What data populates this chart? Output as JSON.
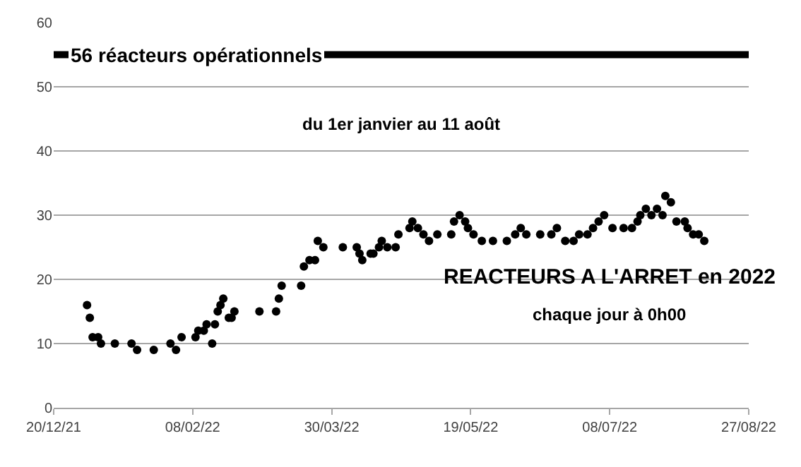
{
  "chart_data": {
    "type": "scatter",
    "marker": "circle",
    "grid": "y",
    "x": [
      "2022-01-01",
      "2022-01-02",
      "2022-01-03",
      "2022-01-05",
      "2022-01-06",
      "2022-01-11",
      "2022-01-17",
      "2022-01-19",
      "2022-01-25",
      "2022-01-31",
      "2022-02-02",
      "2022-02-04",
      "2022-02-09",
      "2022-02-10",
      "2022-02-12",
      "2022-02-13",
      "2022-02-15",
      "2022-02-16",
      "2022-02-17",
      "2022-02-18",
      "2022-02-19",
      "2022-02-21",
      "2022-02-22",
      "2022-02-23",
      "2022-03-04",
      "2022-03-10",
      "2022-03-11",
      "2022-03-12",
      "2022-03-19",
      "2022-03-20",
      "2022-03-22",
      "2022-03-24",
      "2022-03-25",
      "2022-03-27",
      "2022-04-03",
      "2022-04-08",
      "2022-04-09",
      "2022-04-10",
      "2022-04-13",
      "2022-04-14",
      "2022-04-16",
      "2022-04-17",
      "2022-04-19",
      "2022-04-22",
      "2022-04-23",
      "2022-04-27",
      "2022-04-28",
      "2022-04-30",
      "2022-05-02",
      "2022-05-04",
      "2022-05-07",
      "2022-05-12",
      "2022-05-13",
      "2022-05-15",
      "2022-05-17",
      "2022-05-18",
      "2022-05-20",
      "2022-05-23",
      "2022-05-27",
      "2022-06-01",
      "2022-06-04",
      "2022-06-06",
      "2022-06-08",
      "2022-06-13",
      "2022-06-17",
      "2022-06-19",
      "2022-06-22",
      "2022-06-25",
      "2022-06-27",
      "2022-06-30",
      "2022-07-02",
      "2022-07-04",
      "2022-07-06",
      "2022-07-09",
      "2022-07-13",
      "2022-07-16",
      "2022-07-18",
      "2022-07-19",
      "2022-07-21",
      "2022-07-23",
      "2022-07-25",
      "2022-07-27",
      "2022-07-28",
      "2022-07-30",
      "2022-08-01",
      "2022-08-04",
      "2022-08-05",
      "2022-08-07",
      "2022-08-09",
      "2022-08-11"
    ],
    "series": [
      {
        "color": "#000000",
        "values": [
          16,
          14,
          11,
          11,
          10,
          10,
          10,
          9,
          9,
          10,
          9,
          11,
          11,
          12,
          12,
          13,
          10,
          13,
          15,
          16,
          17,
          14,
          14,
          15,
          15,
          15,
          17,
          19,
          19,
          22,
          23,
          23,
          26,
          25,
          25,
          25,
          24,
          23,
          24,
          24,
          25,
          26,
          25,
          25,
          27,
          28,
          29,
          28,
          27,
          26,
          27,
          27,
          29,
          30,
          29,
          28,
          27,
          26,
          26,
          26,
          27,
          28,
          27,
          27,
          27,
          28,
          26,
          26,
          27,
          27,
          28,
          29,
          30,
          28,
          28,
          28,
          29,
          30,
          31,
          30,
          31,
          30,
          33,
          32,
          29,
          29,
          28,
          27,
          27,
          26
        ]
      }
    ],
    "xlim": [
      "2021-12-20",
      "2022-08-27"
    ],
    "xticks": [
      {
        "value": "2021-12-20",
        "label": "20/12/21"
      },
      {
        "value": "2022-02-08",
        "label": "08/02/22"
      },
      {
        "value": "2022-03-30",
        "label": "30/03/22"
      },
      {
        "value": "2022-05-19",
        "label": "19/05/22"
      },
      {
        "value": "2022-07-08",
        "label": "08/07/22"
      },
      {
        "value": "2022-08-27",
        "label": "27/08/22"
      }
    ],
    "ylim": [
      0,
      60
    ],
    "yticks": [
      0,
      10,
      20,
      30,
      40,
      50,
      60
    ],
    "ref_lines": [
      {
        "axis": "y",
        "value": 55,
        "label": "56 réacteurs opérationnels",
        "color": "#000000"
      }
    ],
    "annotations": [
      "du 1er janvier au 11 août",
      "REACTEURS A L'ARRET en 2022",
      "chaque jour à 0h00"
    ]
  }
}
